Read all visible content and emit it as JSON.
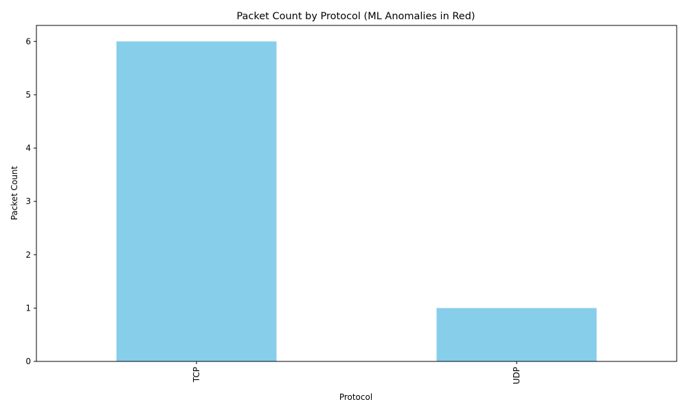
{
  "chart_data": {
    "type": "bar",
    "title": "Packet Count by Protocol (ML Anomalies in Red)",
    "xlabel": "Protocol",
    "ylabel": "Packet Count",
    "categories": [
      "TCP",
      "UDP"
    ],
    "values": [
      6,
      1
    ],
    "ylim": [
      0,
      6.3
    ],
    "yticks": [
      "0",
      "1",
      "2",
      "3",
      "4",
      "5",
      "6"
    ],
    "grid": false,
    "bar_color": "#87ceeb",
    "xtick_rotation": "vertical"
  }
}
